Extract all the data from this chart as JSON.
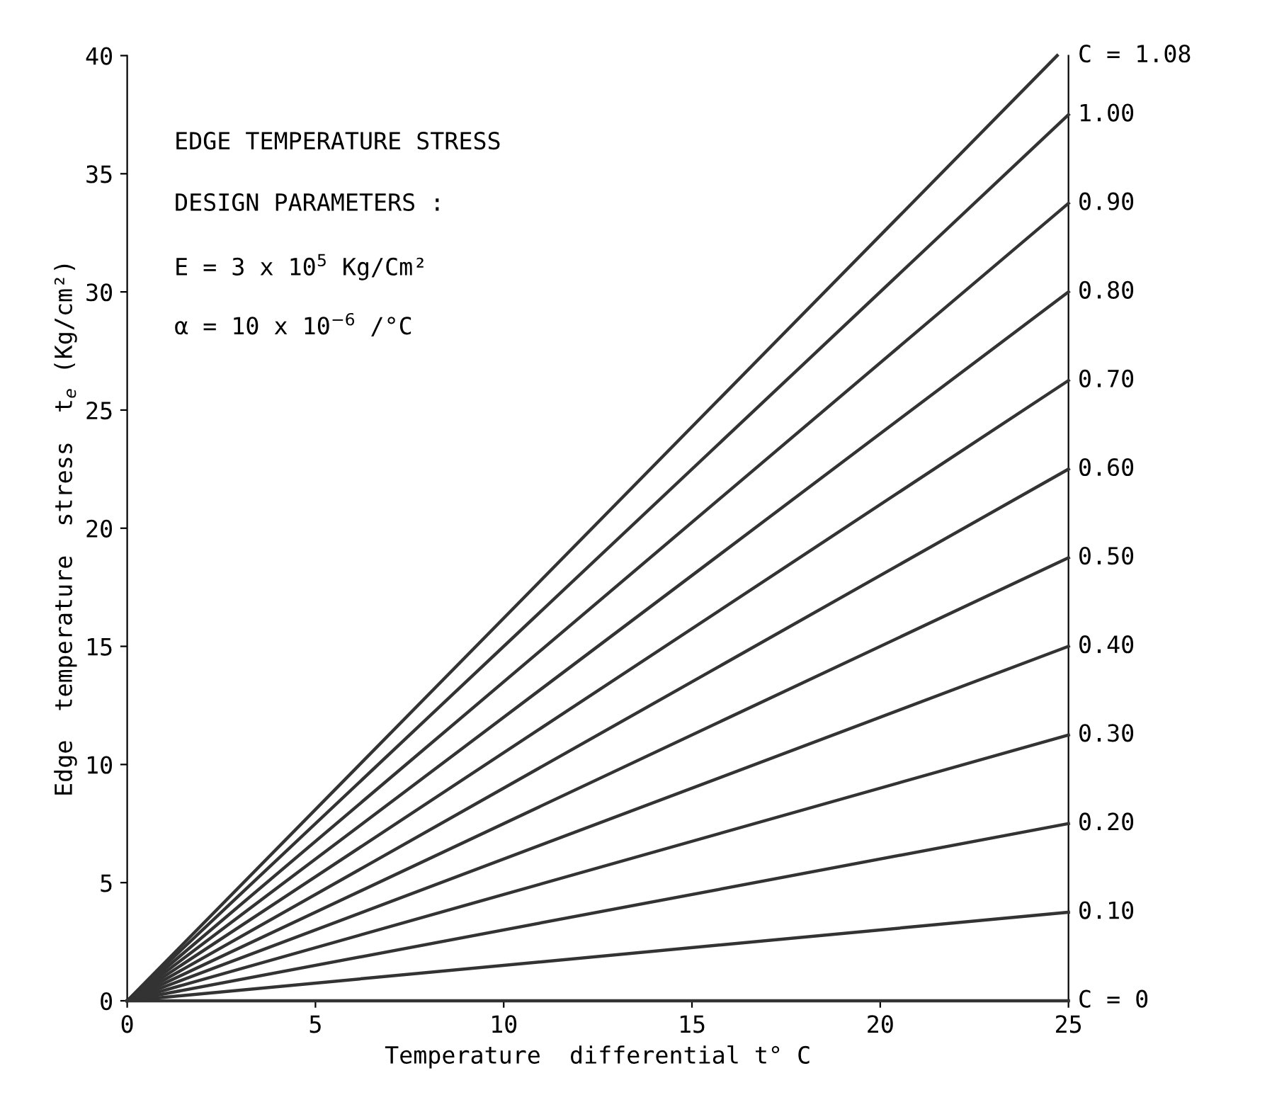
{
  "chart_data": {
    "type": "line",
    "xlabel": "Temperature  differential t° C",
    "ylabel": "Edge  temperature  stress  t$_{e}$ (Kg/cm²)",
    "annotations": [
      "EDGE TEMPERATURE STRESS",
      "DESIGN PARAMETERS :",
      "E = 3 x 10$^{5}$ Kg/Cm²",
      "α = 10 x 10$^{−6}$ /°C"
    ],
    "xlim": [
      0,
      25
    ],
    "ylim": [
      0,
      40
    ],
    "xticks": [
      0,
      5,
      10,
      15,
      20,
      25
    ],
    "yticks": [
      0,
      5,
      10,
      15,
      20,
      25,
      30,
      35,
      40
    ],
    "grid": false,
    "legend": false,
    "marker": "none",
    "line_style": "solid",
    "series": [
      {
        "name": "C = 1.08",
        "color": "#333333",
        "x": [
          0,
          24.7
        ],
        "values": [
          0,
          40
        ]
      },
      {
        "name": "1.00",
        "color": "#333333",
        "x": [
          0,
          25
        ],
        "values": [
          0,
          37.5
        ]
      },
      {
        "name": "0.90",
        "color": "#333333",
        "x": [
          0,
          25
        ],
        "values": [
          0,
          33.75
        ]
      },
      {
        "name": "0.80",
        "color": "#333333",
        "x": [
          0,
          25
        ],
        "values": [
          0,
          30
        ]
      },
      {
        "name": "0.70",
        "color": "#333333",
        "x": [
          0,
          25
        ],
        "values": [
          0,
          26.25
        ]
      },
      {
        "name": "0.60",
        "color": "#333333",
        "x": [
          0,
          25
        ],
        "values": [
          0,
          22.5
        ]
      },
      {
        "name": "0.50",
        "color": "#333333",
        "x": [
          0,
          25
        ],
        "values": [
          0,
          18.75
        ]
      },
      {
        "name": "0.40",
        "color": "#333333",
        "x": [
          0,
          25
        ],
        "values": [
          0,
          15
        ]
      },
      {
        "name": "0.30",
        "color": "#333333",
        "x": [
          0,
          25
        ],
        "values": [
          0,
          11.25
        ]
      },
      {
        "name": "0.20",
        "color": "#333333",
        "x": [
          0,
          25
        ],
        "values": [
          0,
          7.5
        ]
      },
      {
        "name": "0.10",
        "color": "#333333",
        "x": [
          0,
          25
        ],
        "values": [
          0,
          3.75
        ]
      },
      {
        "name": "C = 0",
        "color": "#333333",
        "x": [
          0,
          25
        ],
        "values": [
          0,
          0
        ]
      }
    ]
  }
}
